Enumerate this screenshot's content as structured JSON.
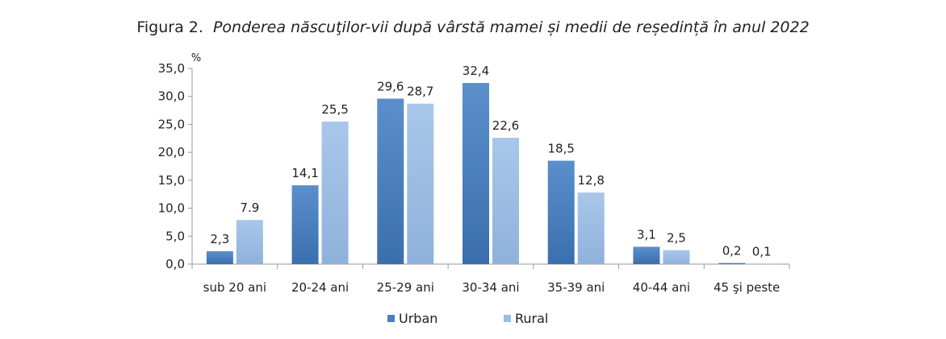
{
  "chart_data": {
    "type": "bar",
    "title_prefix": "Figura 2.",
    "title": "Ponderea născuţilor-vii după vârstă mamei și medii de reședință în anul 2022",
    "ylabel": "%",
    "xlabel": "",
    "ylim": [
      0,
      35
    ],
    "yticks": [
      "0,0",
      "5,0",
      "10,0",
      "15,0",
      "20,0",
      "25,0",
      "30,0",
      "35,0"
    ],
    "categories": [
      "sub 20 ani",
      "20-24 ani",
      "25-29 ani",
      "30-34 ani",
      "35-39 ani",
      "40-44 ani",
      "45 şi peste"
    ],
    "series": [
      {
        "name": "Urban",
        "color": "#4a7fbd",
        "values": [
          2.3,
          14.1,
          29.6,
          32.4,
          18.5,
          3.1,
          0.2
        ],
        "labels": [
          "2,3",
          "14,1",
          "29,6",
          "32,4",
          "18,5",
          "3,1",
          "0,2"
        ]
      },
      {
        "name": "Rural",
        "color": "#9dbde3",
        "values": [
          7.9,
          25.5,
          28.7,
          22.6,
          12.8,
          2.5,
          0.1
        ],
        "labels": [
          "7.9",
          "25,5",
          "28,7",
          "22,6",
          "12,8",
          "2,5",
          "0,1"
        ]
      }
    ],
    "legend_position": "bottom-center",
    "grid": false
  }
}
